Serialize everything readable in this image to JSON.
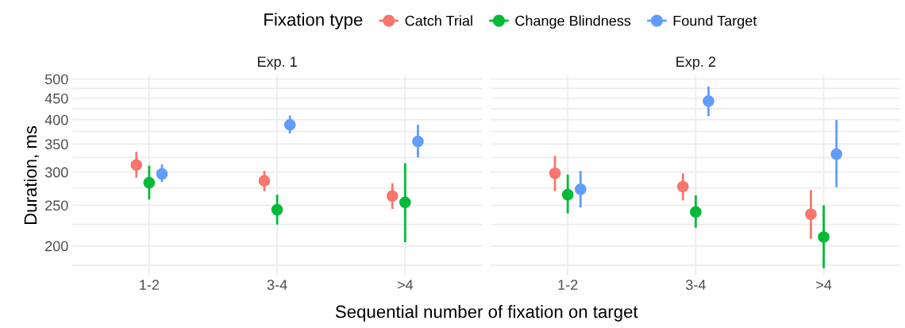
{
  "chart_data": [
    {
      "type": "scatter",
      "title": "Exp. 1",
      "ylabel": "Duration, ms",
      "xlabel": "Sequential number of fixation on target",
      "legend_title": "Fixation type",
      "legend": "top",
      "log": true,
      "grid": true,
      "marker": "circle",
      "categories": [
        "1-2",
        "3-4",
        ">4"
      ],
      "ylim": [
        170,
        510
      ],
      "yticks": [
        {
          "value": 180,
          "label": null
        },
        200,
        {
          "value": 225,
          "label": null
        },
        250,
        {
          "value": 275,
          "label": null
        },
        300,
        {
          "value": 325,
          "label": null
        },
        350,
        {
          "value": 375,
          "label": null
        },
        400,
        {
          "value": 425,
          "label": null
        },
        450,
        {
          "value": 475,
          "label": null
        },
        500
      ],
      "series": [
        {
          "name": "Catch Trial",
          "color": "#f8766d",
          "values": [
            312,
            286,
            263
          ],
          "errors": [
            [
              291,
              335
            ],
            [
              270,
              302
            ],
            [
              245,
              282
            ]
          ]
        },
        {
          "name": "Change Blindness",
          "color": "#00ba38",
          "values": [
            283,
            244,
            254
          ],
          "errors": [
            [
              258,
              311
            ],
            [
              225,
              265
            ],
            [
              204,
              315
            ]
          ]
        },
        {
          "name": "Found Target",
          "color": "#619cff",
          "values": [
            297,
            389,
            355
          ],
          "errors": [
            [
              284,
              313
            ],
            [
              371,
              409
            ],
            [
              325,
              389
            ]
          ]
        }
      ]
    },
    {
      "type": "scatter",
      "title": "Exp. 2",
      "log": true,
      "grid": true,
      "marker": "circle",
      "tick_labels": "x",
      "categories": [
        "1-2",
        "3-4",
        ">4"
      ],
      "ylim": [
        170,
        510
      ],
      "yticks": [
        {
          "value": 180,
          "label": null
        },
        200,
        {
          "value": 225,
          "label": null
        },
        250,
        {
          "value": 275,
          "label": null
        },
        300,
        {
          "value": 325,
          "label": null
        },
        350,
        {
          "value": 375,
          "label": null
        },
        400,
        {
          "value": 425,
          "label": null
        },
        450,
        {
          "value": 475,
          "label": null
        },
        500
      ],
      "series": [
        {
          "name": "Catch Trial",
          "color": "#f8766d",
          "values": [
            298,
            277,
            238
          ],
          "errors": [
            [
              270,
              328
            ],
            [
              257,
              298
            ],
            [
              208,
              272
            ]
          ]
        },
        {
          "name": "Change Blindness",
          "color": "#00ba38",
          "values": [
            265,
            241,
            210
          ],
          "errors": [
            [
              239,
              296
            ],
            [
              221,
              264
            ],
            [
              177,
              250
            ]
          ]
        },
        {
          "name": "Found Target",
          "color": "#619cff",
          "values": [
            273,
            443,
            331
          ],
          "errors": [
            [
              247,
              302
            ],
            [
              408,
              480
            ],
            [
              276,
              399
            ]
          ]
        }
      ]
    }
  ]
}
